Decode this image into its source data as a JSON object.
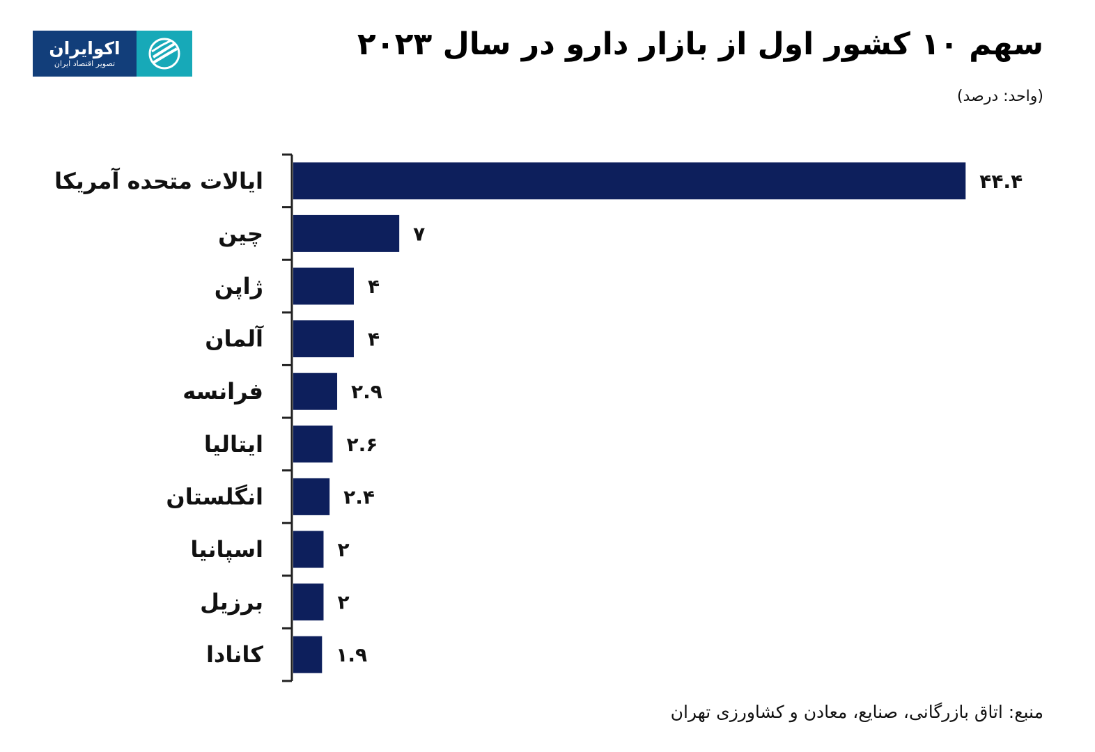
{
  "logo": {
    "name": "اکوایران",
    "tagline": "تصویر اقتصاد ایران"
  },
  "title": "سهم ۱۰ کشور اول از بازار دارو در سال ۲۰۲۳",
  "unit": "(واحد: درصد)",
  "source": "منبع: اتاق بازرگانی، صنایع، معادن و کشاورزی تهران",
  "colors": {
    "bar": "#0d1f5c",
    "axis": "#222222",
    "logo_blue": "#123e7a",
    "logo_teal": "#17a9b8"
  },
  "chart_data": {
    "type": "bar",
    "orientation": "horizontal",
    "categories": [
      "ایالات متحده آمریکا",
      "چین",
      "ژاپن",
      "آلمان",
      "فرانسه",
      "ایتالیا",
      "انگلستان",
      "اسپانیا",
      "برزیل",
      "کانادا"
    ],
    "values": [
      44.4,
      7,
      4,
      4,
      2.9,
      2.6,
      2.4,
      2,
      2,
      1.9
    ],
    "value_labels": [
      "۴۴.۴",
      "۷",
      "۴",
      "۴",
      "۲.۹",
      "۲.۶",
      "۲.۴",
      "۲",
      "۲",
      "۱.۹"
    ],
    "title": "سهم ۱۰ کشور اول از بازار دارو در سال ۲۰۲۳",
    "xlabel": "",
    "ylabel": "",
    "grid": false,
    "legend": "none"
  }
}
